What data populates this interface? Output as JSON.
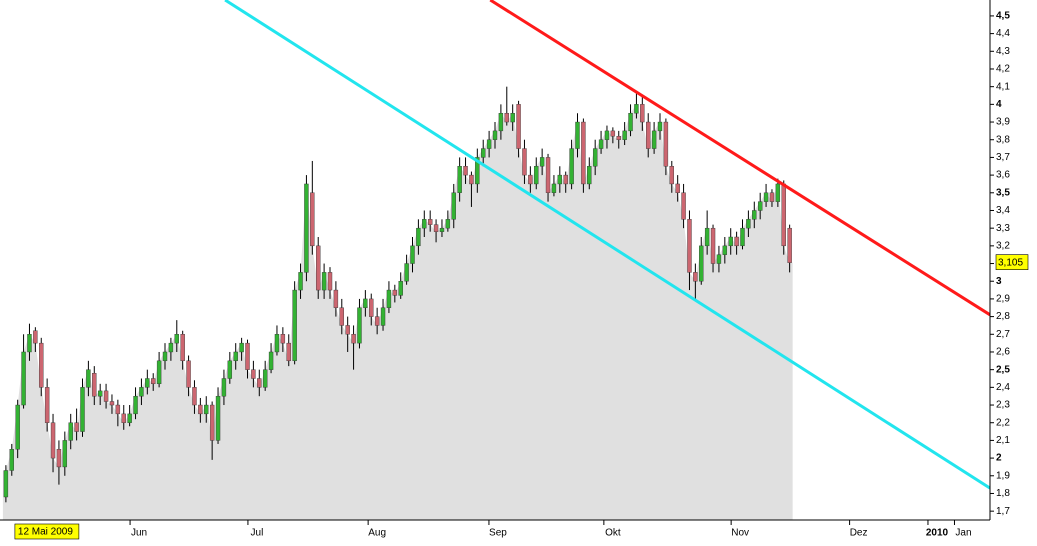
{
  "chart_data": {
    "type": "candlestick",
    "x": [
      0,
      1,
      2,
      3,
      4,
      5,
      6,
      7,
      8,
      9,
      10,
      11,
      12,
      13,
      14,
      15,
      16,
      17,
      18,
      19,
      20,
      21,
      22,
      23,
      24,
      25,
      26,
      27,
      28,
      29,
      30,
      31,
      32,
      33,
      34,
      35,
      36,
      37,
      38,
      39,
      40,
      41,
      42,
      43,
      44,
      45,
      46,
      47,
      48,
      49,
      50,
      51,
      52,
      53,
      54,
      55,
      56,
      57,
      58,
      59,
      60,
      61,
      62,
      63,
      64,
      65,
      66,
      67,
      68,
      69,
      70,
      71,
      72,
      73,
      74,
      75,
      76,
      77,
      78,
      79,
      80,
      81,
      82,
      83,
      84,
      85,
      86,
      87,
      88,
      89,
      90,
      91,
      92,
      93,
      94,
      95,
      96,
      97,
      98,
      99,
      100,
      101,
      102,
      103,
      104,
      105,
      106,
      107,
      108,
      109,
      110,
      111,
      112,
      113,
      114,
      115,
      116,
      117,
      118,
      119,
      120,
      121,
      122,
      123,
      124,
      125,
      126,
      127,
      128,
      129,
      130,
      131,
      132,
      133
    ],
    "ohlc": [
      [
        1.78,
        1.96,
        1.75,
        1.93
      ],
      [
        1.93,
        2.08,
        1.9,
        2.05
      ],
      [
        2.05,
        2.33,
        2.0,
        2.3
      ],
      [
        2.3,
        2.7,
        2.28,
        2.6
      ],
      [
        2.6,
        2.76,
        2.55,
        2.7
      ],
      [
        2.72,
        2.74,
        2.6,
        2.65
      ],
      [
        2.65,
        2.68,
        2.35,
        2.4
      ],
      [
        2.4,
        2.45,
        2.15,
        2.2
      ],
      [
        2.2,
        2.25,
        1.92,
        2.0
      ],
      [
        2.05,
        2.1,
        1.85,
        1.95
      ],
      [
        1.95,
        2.15,
        1.9,
        2.1
      ],
      [
        2.1,
        2.25,
        2.05,
        2.2
      ],
      [
        2.2,
        2.28,
        2.1,
        2.15
      ],
      [
        2.15,
        2.45,
        2.12,
        2.4
      ],
      [
        2.4,
        2.55,
        2.35,
        2.5
      ],
      [
        2.48,
        2.52,
        2.3,
        2.35
      ],
      [
        2.35,
        2.42,
        2.3,
        2.38
      ],
      [
        2.38,
        2.42,
        2.28,
        2.32
      ],
      [
        2.32,
        2.36,
        2.25,
        2.3
      ],
      [
        2.3,
        2.33,
        2.18,
        2.25
      ],
      [
        2.25,
        2.3,
        2.16,
        2.2
      ],
      [
        2.2,
        2.3,
        2.18,
        2.25
      ],
      [
        2.25,
        2.4,
        2.22,
        2.35
      ],
      [
        2.35,
        2.45,
        2.3,
        2.4
      ],
      [
        2.4,
        2.5,
        2.36,
        2.45
      ],
      [
        2.45,
        2.48,
        2.38,
        2.42
      ],
      [
        2.42,
        2.6,
        2.4,
        2.55
      ],
      [
        2.55,
        2.65,
        2.5,
        2.6
      ],
      [
        2.6,
        2.68,
        2.55,
        2.65
      ],
      [
        2.65,
        2.78,
        2.6,
        2.7
      ],
      [
        2.7,
        2.72,
        2.5,
        2.55
      ],
      [
        2.55,
        2.58,
        2.35,
        2.4
      ],
      [
        2.4,
        2.44,
        2.25,
        2.3
      ],
      [
        2.3,
        2.34,
        2.2,
        2.25
      ],
      [
        2.25,
        2.35,
        2.2,
        2.3
      ],
      [
        2.3,
        2.32,
        1.99,
        2.1
      ],
      [
        2.1,
        2.4,
        2.08,
        2.35
      ],
      [
        2.35,
        2.5,
        2.3,
        2.45
      ],
      [
        2.45,
        2.6,
        2.42,
        2.55
      ],
      [
        2.55,
        2.65,
        2.5,
        2.6
      ],
      [
        2.6,
        2.68,
        2.55,
        2.65
      ],
      [
        2.65,
        2.67,
        2.45,
        2.5
      ],
      [
        2.5,
        2.55,
        2.4,
        2.45
      ],
      [
        2.45,
        2.5,
        2.35,
        2.4
      ],
      [
        2.4,
        2.55,
        2.38,
        2.5
      ],
      [
        2.5,
        2.65,
        2.48,
        2.6
      ],
      [
        2.6,
        2.75,
        2.58,
        2.7
      ],
      [
        2.7,
        2.74,
        2.6,
        2.65
      ],
      [
        2.65,
        2.7,
        2.52,
        2.55
      ],
      [
        2.55,
        3.0,
        2.53,
        2.95
      ],
      [
        2.95,
        3.1,
        2.9,
        3.05
      ],
      [
        3.05,
        3.6,
        3.0,
        3.55
      ],
      [
        3.5,
        3.68,
        3.15,
        3.2
      ],
      [
        3.2,
        3.25,
        2.9,
        2.95
      ],
      [
        2.95,
        3.1,
        2.9,
        3.05
      ],
      [
        3.05,
        3.08,
        2.9,
        2.95
      ],
      [
        2.95,
        3.0,
        2.8,
        2.85
      ],
      [
        2.85,
        2.9,
        2.7,
        2.75
      ],
      [
        2.75,
        2.8,
        2.6,
        2.7
      ],
      [
        2.7,
        2.75,
        2.5,
        2.65
      ],
      [
        2.65,
        2.9,
        2.62,
        2.85
      ],
      [
        2.85,
        2.95,
        2.8,
        2.9
      ],
      [
        2.9,
        2.93,
        2.75,
        2.8
      ],
      [
        2.8,
        2.85,
        2.7,
        2.75
      ],
      [
        2.75,
        2.9,
        2.72,
        2.85
      ],
      [
        2.85,
        3.0,
        2.82,
        2.95
      ],
      [
        2.95,
        2.98,
        2.88,
        2.92
      ],
      [
        2.92,
        3.05,
        2.9,
        3.0
      ],
      [
        3.0,
        3.15,
        2.98,
        3.1
      ],
      [
        3.1,
        3.25,
        3.05,
        3.2
      ],
      [
        3.2,
        3.35,
        3.15,
        3.3
      ],
      [
        3.3,
        3.4,
        3.25,
        3.35
      ],
      [
        3.35,
        3.4,
        3.28,
        3.32
      ],
      [
        3.32,
        3.35,
        3.22,
        3.28
      ],
      [
        3.28,
        3.35,
        3.25,
        3.3
      ],
      [
        3.3,
        3.4,
        3.28,
        3.35
      ],
      [
        3.35,
        3.55,
        3.3,
        3.5
      ],
      [
        3.5,
        3.7,
        3.45,
        3.65
      ],
      [
        3.65,
        3.7,
        3.55,
        3.6
      ],
      [
        3.6,
        3.62,
        3.42,
        3.55
      ],
      [
        3.55,
        3.75,
        3.5,
        3.7
      ],
      [
        3.7,
        3.8,
        3.65,
        3.75
      ],
      [
        3.75,
        3.85,
        3.7,
        3.8
      ],
      [
        3.8,
        3.9,
        3.75,
        3.85
      ],
      [
        3.85,
        4.0,
        3.8,
        3.95
      ],
      [
        3.95,
        4.1,
        3.88,
        3.9
      ],
      [
        3.9,
        4.0,
        3.85,
        3.95
      ],
      [
        4.0,
        4.02,
        3.7,
        3.75
      ],
      [
        3.75,
        3.8,
        3.55,
        3.6
      ],
      [
        3.6,
        3.65,
        3.5,
        3.55
      ],
      [
        3.55,
        3.7,
        3.52,
        3.65
      ],
      [
        3.65,
        3.75,
        3.6,
        3.7
      ],
      [
        3.7,
        3.72,
        3.45,
        3.5
      ],
      [
        3.5,
        3.6,
        3.48,
        3.55
      ],
      [
        3.55,
        3.65,
        3.5,
        3.6
      ],
      [
        3.6,
        3.62,
        3.5,
        3.55
      ],
      [
        3.55,
        3.8,
        3.52,
        3.75
      ],
      [
        3.75,
        3.95,
        3.7,
        3.9
      ],
      [
        3.9,
        3.92,
        3.5,
        3.55
      ],
      [
        3.55,
        3.7,
        3.52,
        3.65
      ],
      [
        3.65,
        3.8,
        3.6,
        3.75
      ],
      [
        3.75,
        3.85,
        3.72,
        3.8
      ],
      [
        3.8,
        3.88,
        3.75,
        3.85
      ],
      [
        3.85,
        3.87,
        3.78,
        3.82
      ],
      [
        3.82,
        3.85,
        3.75,
        3.8
      ],
      [
        3.8,
        3.9,
        3.77,
        3.85
      ],
      [
        3.85,
        4.0,
        3.82,
        3.95
      ],
      [
        3.95,
        4.07,
        3.92,
        4.0
      ],
      [
        4.0,
        4.05,
        3.85,
        3.9
      ],
      [
        3.9,
        3.95,
        3.7,
        3.75
      ],
      [
        3.75,
        3.9,
        3.72,
        3.85
      ],
      [
        3.85,
        3.95,
        3.8,
        3.9
      ],
      [
        3.9,
        3.92,
        3.6,
        3.65
      ],
      [
        3.65,
        3.68,
        3.5,
        3.55
      ],
      [
        3.55,
        3.6,
        3.45,
        3.5
      ],
      [
        3.5,
        3.55,
        3.3,
        3.35
      ],
      [
        3.35,
        3.4,
        2.95,
        3.05
      ],
      [
        3.05,
        3.1,
        2.9,
        3.0
      ],
      [
        3.0,
        3.25,
        2.98,
        3.2
      ],
      [
        3.2,
        3.4,
        3.15,
        3.3
      ],
      [
        3.3,
        3.32,
        3.05,
        3.1
      ],
      [
        3.1,
        3.2,
        3.05,
        3.15
      ],
      [
        3.15,
        3.25,
        3.1,
        3.2
      ],
      [
        3.2,
        3.3,
        3.15,
        3.25
      ],
      [
        3.25,
        3.28,
        3.15,
        3.2
      ],
      [
        3.2,
        3.35,
        3.18,
        3.3
      ],
      [
        3.3,
        3.4,
        3.25,
        3.35
      ],
      [
        3.35,
        3.45,
        3.3,
        3.4
      ],
      [
        3.4,
        3.5,
        3.35,
        3.45
      ],
      [
        3.45,
        3.55,
        3.42,
        3.5
      ],
      [
        3.5,
        3.52,
        3.42,
        3.45
      ],
      [
        3.45,
        3.58,
        3.42,
        3.55
      ],
      [
        3.55,
        3.57,
        3.15,
        3.2
      ],
      [
        3.3,
        3.32,
        3.05,
        3.105
      ]
    ],
    "up_color": "#33b233",
    "down_color": "#cc6670",
    "area_color": "#e0e0e0",
    "xlim": [
      -1,
      167
    ],
    "ylim": [
      1.65,
      4.59
    ],
    "xticks": [
      {
        "value": 22.6,
        "label": "Jun"
      },
      {
        "value": 42.6,
        "label": "Jul"
      },
      {
        "value": 63,
        "label": "Aug"
      },
      {
        "value": 83.5,
        "label": "Sep"
      },
      {
        "value": 103,
        "label": "Okt"
      },
      {
        "value": 124.6,
        "label": "Nov"
      },
      {
        "value": 144.7,
        "label": "Dez"
      },
      {
        "value": 158,
        "label": "2010"
      },
      {
        "value": 162.5,
        "label": "Jan"
      }
    ],
    "yticks": [
      {
        "value": 1.7,
        "label": "1,7"
      },
      {
        "value": 1.8,
        "label": "1,8"
      },
      {
        "value": 1.9,
        "label": "1,9"
      },
      {
        "value": 2,
        "label": "2"
      },
      {
        "value": 2.1,
        "label": "2,1"
      },
      {
        "value": 2.2,
        "label": "2,2"
      },
      {
        "value": 2.3,
        "label": "2,3"
      },
      {
        "value": 2.4,
        "label": "2,4"
      },
      {
        "value": 2.5,
        "label": "2,5"
      },
      {
        "value": 2.6,
        "label": "2,6"
      },
      {
        "value": 2.7,
        "label": "2,7"
      },
      {
        "value": 2.8,
        "label": "2,8"
      },
      {
        "value": 2.9,
        "label": "2,9"
      },
      {
        "value": 3,
        "label": "3"
      },
      {
        "value": 3.1,
        "label": "3,1"
      },
      {
        "value": 3.2,
        "label": "3,2"
      },
      {
        "value": 3.3,
        "label": "3,3"
      },
      {
        "value": 3.4,
        "label": "3,4"
      },
      {
        "value": 3.5,
        "label": "3,5"
      },
      {
        "value": 3.6,
        "label": "3,6"
      },
      {
        "value": 3.7,
        "label": "3,7"
      },
      {
        "value": 3.8,
        "label": "3,8"
      },
      {
        "value": 3.9,
        "label": "3,9"
      },
      {
        "value": 4,
        "label": "4"
      },
      {
        "value": 4.1,
        "label": "4,1"
      },
      {
        "value": 4.2,
        "label": "4,2"
      },
      {
        "value": 4.3,
        "label": "4,3"
      },
      {
        "value": 4.4,
        "label": "4,4"
      },
      {
        "value": 4.5,
        "label": "4,5"
      }
    ],
    "date_cursor": "12 Mai 2009",
    "last_price": {
      "value": 3.105,
      "label": "3,105"
    },
    "trendlines": [
      {
        "color": "#ff1a1a",
        "x": [
          82.2,
          167
        ],
        "y": [
          4.59,
          2.81
        ]
      },
      {
        "color": "#22e5ee",
        "x": [
          37.2,
          167
        ],
        "y": [
          4.59,
          1.83
        ]
      }
    ]
  }
}
